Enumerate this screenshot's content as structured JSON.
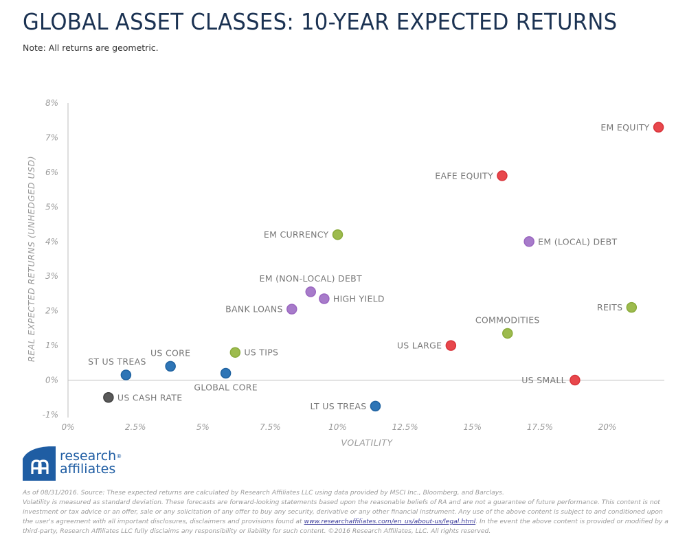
{
  "header": {
    "title": "GLOBAL ASSET CLASSES: 10-YEAR EXPECTED RETURNS",
    "note": "Note: All returns are geometric."
  },
  "chart_data": {
    "type": "scatter",
    "title": "GLOBAL ASSET CLASSES: 10-YEAR EXPECTED RETURNS",
    "xlabel": "VOLATILITY",
    "ylabel": "REAL EXPECTED RETURNS (UNHEDGED USD)",
    "xlim": [
      0,
      22.2
    ],
    "ylim": [
      -1,
      8
    ],
    "x_ticks": [
      {
        "value": 0,
        "label": "0%"
      },
      {
        "value": 2.5,
        "label": "2.5%"
      },
      {
        "value": 5,
        "label": "5%"
      },
      {
        "value": 7.5,
        "label": "7.5%"
      },
      {
        "value": 10,
        "label": "10%"
      },
      {
        "value": 12.5,
        "label": "12.5%"
      },
      {
        "value": 15,
        "label": "15%"
      },
      {
        "value": 17.5,
        "label": "17.5%"
      },
      {
        "value": 20,
        "label": "20%"
      }
    ],
    "y_ticks": [
      {
        "value": 8,
        "label": "8%"
      },
      {
        "value": 7,
        "label": "7%"
      },
      {
        "value": 6,
        "label": "6%"
      },
      {
        "value": 5,
        "label": "5%"
      },
      {
        "value": 4,
        "label": "4%"
      },
      {
        "value": 3,
        "label": "3%"
      },
      {
        "value": 2,
        "label": "2%"
      },
      {
        "value": 1,
        "label": "1%"
      },
      {
        "value": 0,
        "label": "0%"
      },
      {
        "value": -1,
        "label": "-1%"
      }
    ],
    "grid": false,
    "categories_colors": {
      "equity": "#e8474c",
      "fixed_income": "#2e75b6",
      "credit": "#a77bca",
      "real_assets": "#9dbb4e",
      "cash": "#595959"
    },
    "points": [
      {
        "name": "EM EQUITY",
        "x": 21.9,
        "y": 7.3,
        "group": "equity",
        "label_pos": "left"
      },
      {
        "name": "EAFE EQUITY",
        "x": 16.1,
        "y": 5.9,
        "group": "equity",
        "label_pos": "left"
      },
      {
        "name": "EM (LOCAL) DEBT",
        "x": 17.1,
        "y": 4.0,
        "group": "credit",
        "label_pos": "right"
      },
      {
        "name": "EM CURRENCY",
        "x": 10.0,
        "y": 4.2,
        "group": "real_assets",
        "label_pos": "left"
      },
      {
        "name": "EM (NON-LOCAL) DEBT",
        "x": 9.0,
        "y": 2.55,
        "group": "credit",
        "label_pos": "top"
      },
      {
        "name": "HIGH YIELD",
        "x": 9.5,
        "y": 2.35,
        "group": "credit",
        "label_pos": "right"
      },
      {
        "name": "BANK LOANS",
        "x": 8.3,
        "y": 2.05,
        "group": "credit",
        "label_pos": "left"
      },
      {
        "name": "REITS",
        "x": 20.9,
        "y": 2.1,
        "group": "real_assets",
        "label_pos": "left"
      },
      {
        "name": "COMMODITIES",
        "x": 16.3,
        "y": 1.35,
        "group": "real_assets",
        "label_pos": "top"
      },
      {
        "name": "US LARGE",
        "x": 14.2,
        "y": 1.0,
        "group": "equity",
        "label_pos": "left"
      },
      {
        "name": "US SMALL",
        "x": 18.8,
        "y": 0.0,
        "group": "equity",
        "label_pos": "left"
      },
      {
        "name": "US TIPS",
        "x": 6.2,
        "y": 0.8,
        "group": "real_assets",
        "label_pos": "right"
      },
      {
        "name": "US CORE",
        "x": 3.8,
        "y": 0.4,
        "group": "fixed_income",
        "label_pos": "top"
      },
      {
        "name": "ST US TREAS",
        "x": 2.15,
        "y": 0.15,
        "group": "fixed_income",
        "label_pos": "top"
      },
      {
        "name": "GLOBAL CORE",
        "x": 5.85,
        "y": 0.2,
        "group": "fixed_income",
        "label_pos": "bottom"
      },
      {
        "name": "US CASH RATE",
        "x": 1.5,
        "y": -0.5,
        "group": "cash",
        "label_pos": "right"
      },
      {
        "name": "LT US TREAS",
        "x": 11.4,
        "y": -0.75,
        "group": "fixed_income",
        "label_pos": "left"
      }
    ]
  },
  "logo": {
    "line1": "research",
    "line2": "affiliates",
    "reg": "®"
  },
  "footer": {
    "line1": "As of 08/31/2016. Source: These expected returns are calculated by Research Affiliates LLC using data provided by MSCI Inc., Bloomberg, and Barclays.",
    "line2_pre": "Volatility is measured as standard deviation. These forecasts are forward-looking statements based upon the reasonable beliefs of RA and are not a guarantee of future performance. This content is not investment or tax advice or an offer, sale or any solicitation of any offer to buy any security, derivative or any other financial instrument. Any use of the above content is subject to and conditioned upon the user's agreement with all important disclosures, disclaimers and provisions found at ",
    "link": "www.researchaffiliates.com/en_us/about-us/legal.html",
    "line2_post": ". In the event the above content is provided or modified by a third-party, Research Affiliates LLC fully disclaims any responsibility or liability for such content. ©2016 Research Affiliates, LLC. All rights reserved."
  }
}
